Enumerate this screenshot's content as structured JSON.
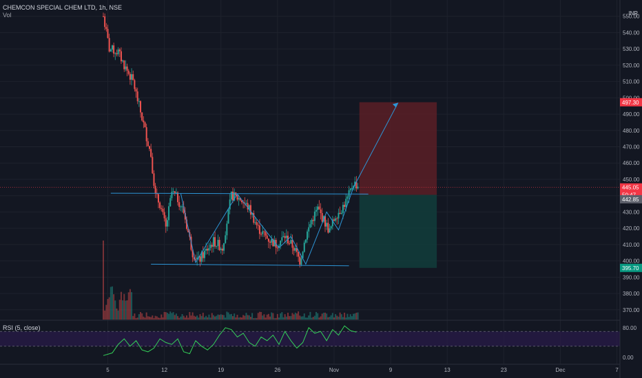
{
  "header": {
    "symbol_line": "CHEMCON SPECIAL CHEM LTD, 1h, NSE",
    "volume_label": "Vol",
    "currency": "INR"
  },
  "rsi": {
    "label": "RSI (5, close)",
    "ticks": [
      "80.00",
      "0.00"
    ],
    "upper": 70,
    "lower": 30
  },
  "price_badges": [
    {
      "label": "497.30",
      "value": 497.3,
      "color": "#f23645"
    },
    {
      "label": "445.05",
      "value": 445.05,
      "color": "#f23645"
    },
    {
      "label": "50:47",
      "value": 440.5,
      "color": "#f23645"
    },
    {
      "label": "442.85",
      "value": 437.8,
      "color": "#5d606b"
    },
    {
      "label": "395.70",
      "value": 395.7,
      "color": "#089981"
    }
  ],
  "colors": {
    "up": "#26a69a",
    "down": "#ef5350",
    "drawing": "#2d95d6",
    "rsi_line": "#34d058"
  },
  "chart_data": {
    "type": "candlestick",
    "title": "CHEMCON SPECIAL CHEM LTD, 1h, NSE",
    "y_ticks": [
      "370.00",
      "380.00",
      "390.00",
      "400.00",
      "410.00",
      "420.00",
      "430.00",
      "440.00",
      "450.00",
      "460.00",
      "470.00",
      "480.00",
      "490.00",
      "500.00",
      "510.00",
      "520.00",
      "530.00",
      "540.00",
      "550.00"
    ],
    "ylim": [
      364,
      560
    ],
    "x_ticks": [
      {
        "label": "5",
        "bar": 3
      },
      {
        "label": "12",
        "bar": 41
      },
      {
        "label": "19",
        "bar": 79
      },
      {
        "label": "26",
        "bar": 117
      },
      {
        "label": "Nov",
        "bar": 155
      },
      {
        "label": "9",
        "bar": 193
      },
      {
        "label": "13",
        "bar": 231
      },
      {
        "label": "23",
        "bar": 269
      },
      {
        "label": "Dec",
        "bar": 307
      },
      {
        "label": "7",
        "bar": 345
      }
    ],
    "bars_total": 360,
    "price_path": [
      [
        0,
        550
      ],
      [
        4,
        530
      ],
      [
        10,
        528
      ],
      [
        14,
        520
      ],
      [
        20,
        510
      ],
      [
        24,
        495
      ],
      [
        28,
        480
      ],
      [
        32,
        465
      ],
      [
        35,
        440
      ],
      [
        38,
        435
      ],
      [
        42,
        420
      ],
      [
        46,
        442
      ],
      [
        50,
        438
      ],
      [
        54,
        430
      ],
      [
        60,
        405
      ],
      [
        64,
        400
      ],
      [
        68,
        405
      ],
      [
        74,
        412
      ],
      [
        80,
        408
      ],
      [
        86,
        440
      ],
      [
        92,
        438
      ],
      [
        98,
        432
      ],
      [
        104,
        420
      ],
      [
        110,
        414
      ],
      [
        116,
        410
      ],
      [
        122,
        415
      ],
      [
        128,
        408
      ],
      [
        132,
        400
      ],
      [
        136,
        415
      ],
      [
        140,
        425
      ],
      [
        144,
        432
      ],
      [
        148,
        425
      ],
      [
        152,
        418
      ],
      [
        156,
        428
      ],
      [
        160,
        432
      ],
      [
        164,
        438
      ],
      [
        168,
        448
      ],
      [
        171,
        446
      ]
    ],
    "candle_count": 172,
    "trade_box": {
      "bar_start": 172,
      "bar_end": 224,
      "entry": 440.5,
      "target": 497.3,
      "stop": 395.7
    },
    "drawings": {
      "resistance": [
        [
          5,
          441.5
        ],
        [
          178,
          441
        ]
      ],
      "support": [
        [
          32,
          398
        ],
        [
          165,
          397
        ]
      ],
      "pattern": [
        [
          52,
          441.5
        ],
        [
          62,
          399
        ],
        [
          90,
          441
        ],
        [
          118,
          408
        ],
        [
          126,
          415
        ],
        [
          136,
          398
        ],
        [
          150,
          430
        ],
        [
          158,
          419
        ],
        [
          168,
          445
        ],
        [
          198,
          497
        ]
      ]
    },
    "volume": {
      "spike_bar": 0
    },
    "rsi_range": [
      0,
      100
    ],
    "rsi_path": [
      [
        0,
        5
      ],
      [
        6,
        12
      ],
      [
        10,
        35
      ],
      [
        14,
        50
      ],
      [
        18,
        30
      ],
      [
        22,
        45
      ],
      [
        26,
        20
      ],
      [
        30,
        15
      ],
      [
        34,
        25
      ],
      [
        38,
        50
      ],
      [
        42,
        40
      ],
      [
        46,
        35
      ],
      [
        50,
        50
      ],
      [
        54,
        15
      ],
      [
        58,
        10
      ],
      [
        62,
        45
      ],
      [
        66,
        30
      ],
      [
        70,
        20
      ],
      [
        74,
        35
      ],
      [
        78,
        60
      ],
      [
        82,
        80
      ],
      [
        86,
        75
      ],
      [
        90,
        55
      ],
      [
        94,
        65
      ],
      [
        98,
        40
      ],
      [
        102,
        30
      ],
      [
        106,
        55
      ],
      [
        110,
        45
      ],
      [
        114,
        60
      ],
      [
        118,
        35
      ],
      [
        122,
        70
      ],
      [
        126,
        45
      ],
      [
        130,
        25
      ],
      [
        134,
        40
      ],
      [
        138,
        80
      ],
      [
        142,
        65
      ],
      [
        146,
        70
      ],
      [
        150,
        45
      ],
      [
        154,
        75
      ],
      [
        158,
        60
      ],
      [
        162,
        85
      ],
      [
        166,
        72
      ],
      [
        170,
        68
      ]
    ]
  }
}
